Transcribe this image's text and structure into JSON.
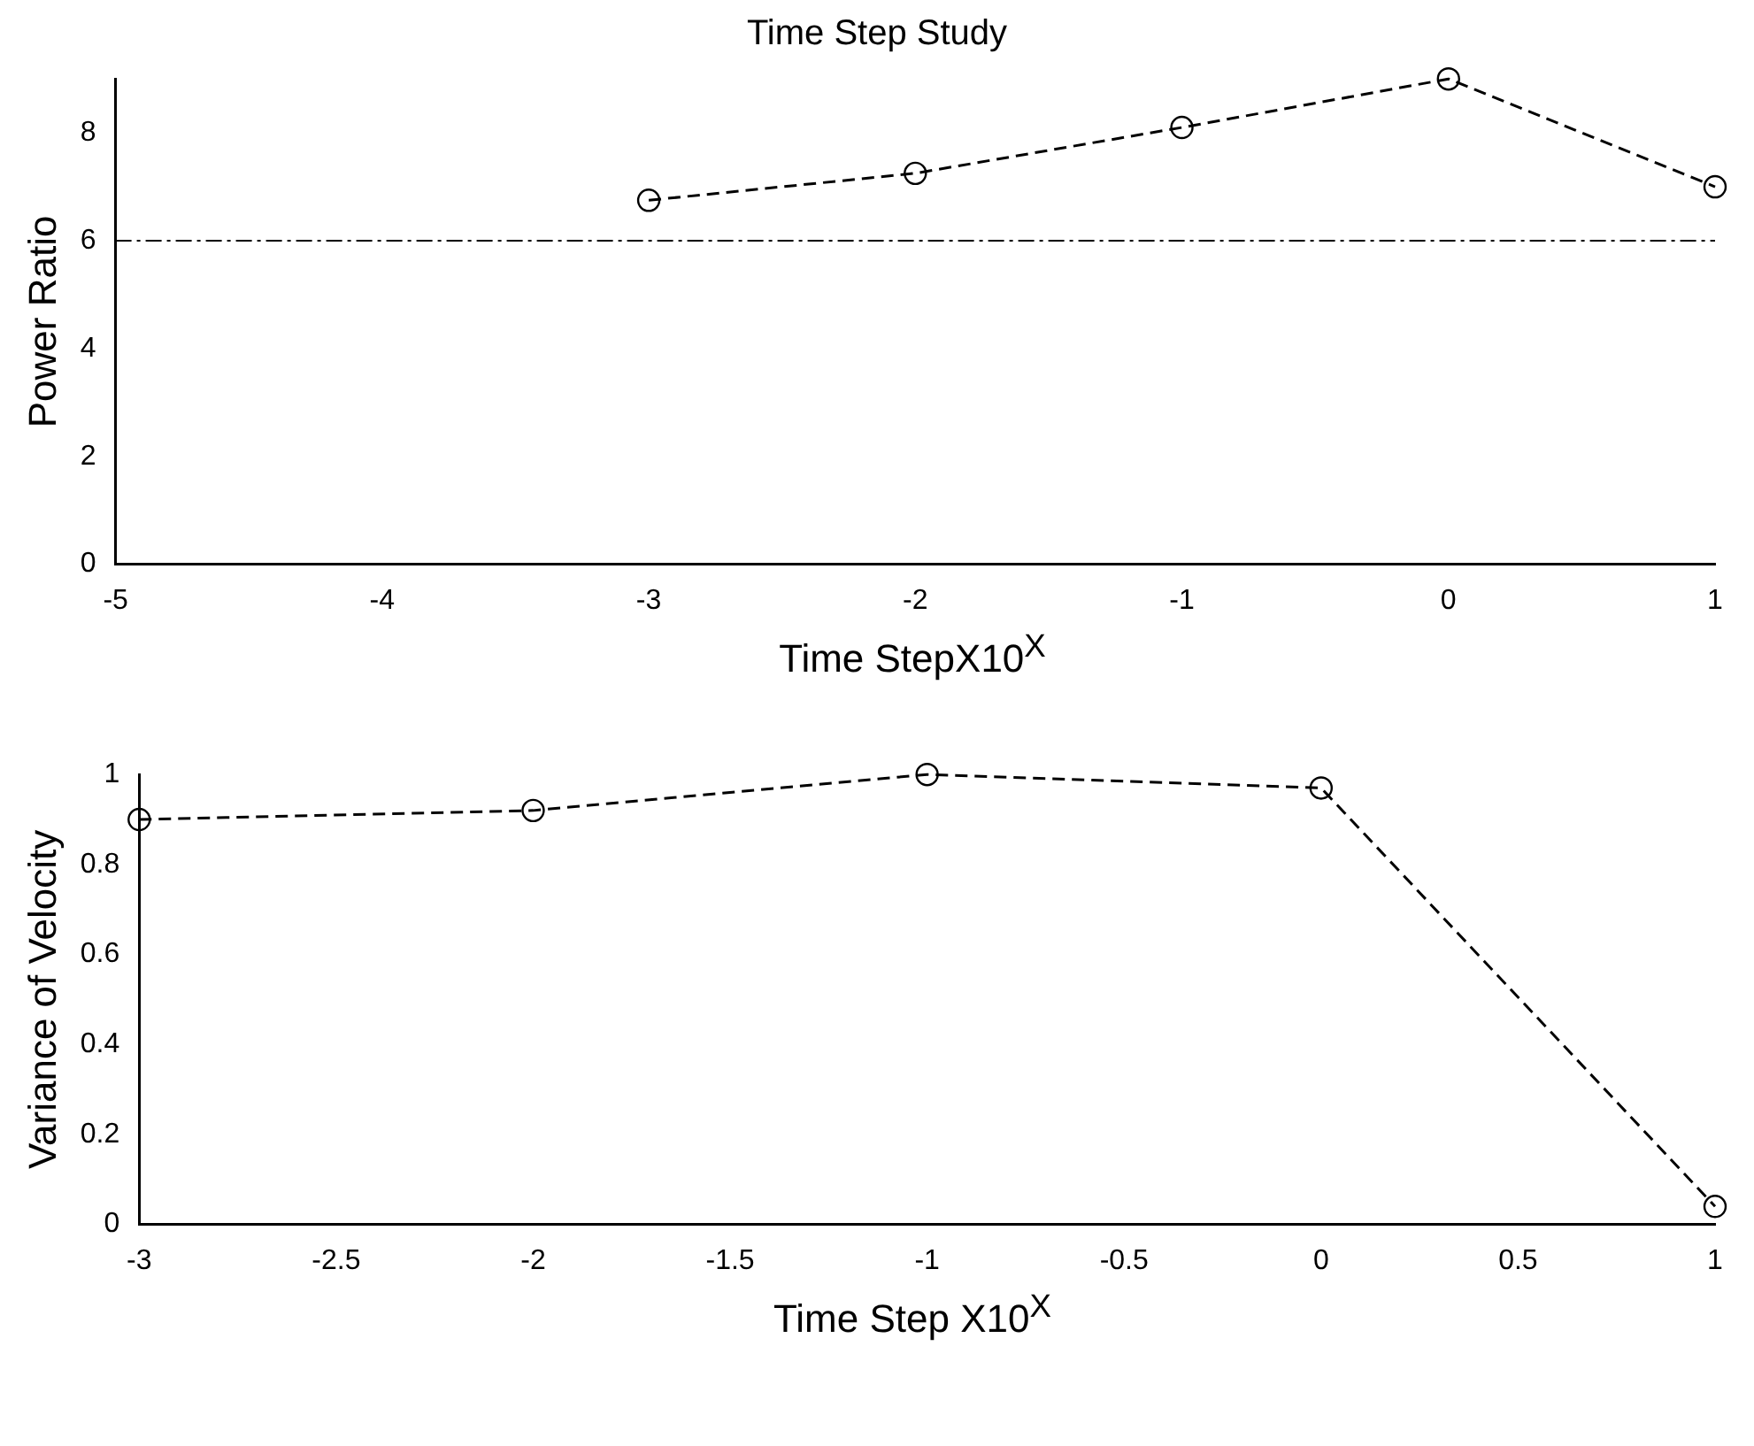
{
  "chart_data": [
    {
      "type": "line",
      "title": "Time Step Study",
      "xlabel": "Time StepX10$^{X}$",
      "ylabel": "Power Ratio",
      "x": [
        -3,
        -2,
        -1,
        0,
        1
      ],
      "series": [
        {
          "color": "#000000",
          "values": [
            6.75,
            7.25,
            8.1,
            9.0,
            7.0
          ]
        }
      ],
      "xlim": [
        -5,
        1
      ],
      "xticks": [
        -5,
        -4,
        -3,
        -2,
        -1,
        0,
        1
      ],
      "ylim": [
        0,
        9
      ],
      "yticks": [
        0,
        2,
        4,
        6,
        8
      ],
      "grid": false,
      "legend": false,
      "marker": "circle",
      "line_style": "dashed",
      "ref_lines": [
        {
          "axis": "y",
          "value": 6,
          "color": "#000000"
        }
      ]
    },
    {
      "type": "line",
      "xlabel": "Time Step X10$^{X}$",
      "ylabel": "Variance of Velocity",
      "x": [
        -3,
        -2,
        -1,
        0,
        1
      ],
      "series": [
        {
          "color": "#000000",
          "values": [
            0.9,
            0.92,
            1.0,
            0.97,
            0.04
          ]
        }
      ],
      "xlim": [
        -3,
        1
      ],
      "xticks": [
        -3,
        -2.5,
        -2,
        -1.5,
        -1,
        -0.5,
        0,
        0.5,
        1
      ],
      "ylim": [
        0,
        1
      ],
      "yticks": [
        0,
        0.2,
        0.4,
        0.6,
        0.8,
        1
      ],
      "grid": false,
      "legend": false,
      "marker": "circle",
      "line_style": "dashed"
    }
  ]
}
